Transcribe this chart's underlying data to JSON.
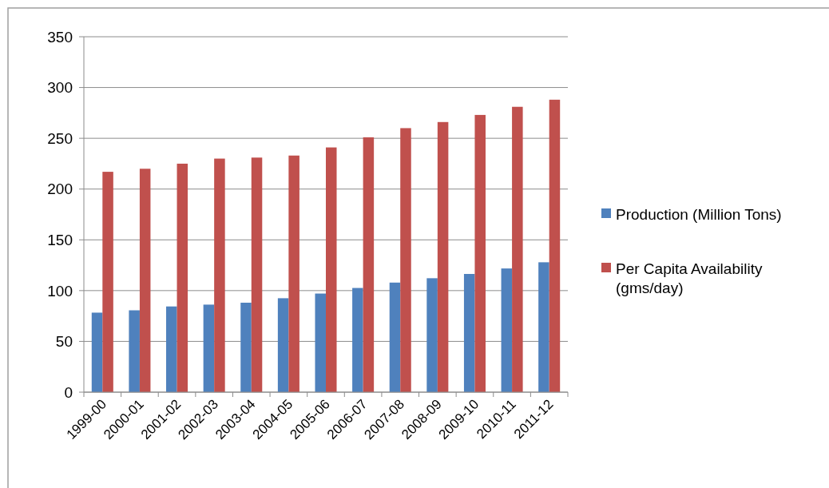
{
  "chart_data": {
    "type": "bar",
    "categories": [
      "1999-00",
      "2000-01",
      "2001-02",
      "2002-03",
      "2003-04",
      "2004-05",
      "2005-06",
      "2006-07",
      "2007-08",
      "2008-09",
      "2009-10",
      "2010-11",
      "2011-12"
    ],
    "series": [
      {
        "name": "Production (Million Tons)",
        "color": "#4f81bd",
        "values": [
          78.3,
          80.6,
          84.4,
          86.2,
          88.1,
          92.5,
          97.1,
          102.6,
          107.9,
          112.2,
          116.4,
          121.8,
          127.9
        ]
      },
      {
        "name": "Per Capita Availability (gms/day)",
        "color": "#c0504d",
        "values": [
          217,
          220,
          225,
          230,
          231,
          233,
          241,
          251,
          260,
          266,
          273,
          281,
          288
        ]
      }
    ],
    "ylim": [
      0,
      350
    ],
    "yticks": [
      0,
      50,
      100,
      150,
      200,
      250,
      300,
      350
    ],
    "grid": "y",
    "legend": "right"
  }
}
